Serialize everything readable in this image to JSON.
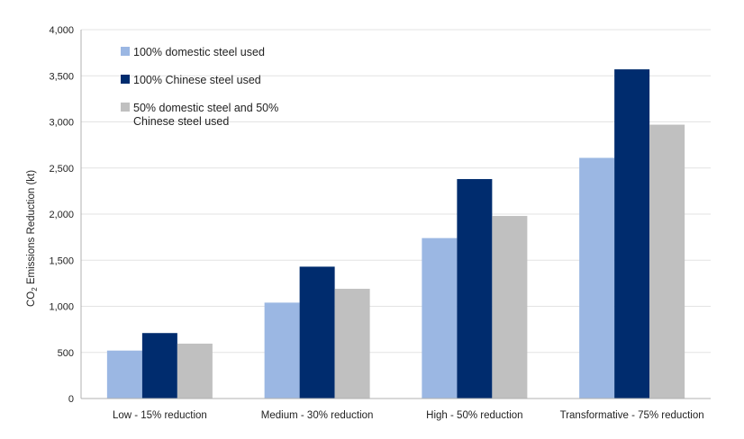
{
  "chart_data": {
    "type": "bar",
    "title": "",
    "xlabel": "",
    "ylabel": {
      "prefix": "CO",
      "subscript": "2",
      "suffix": " Emissions Reduction (kt)"
    },
    "categories": [
      "Low - 15% reduction",
      "Medium - 30% reduction",
      "High - 50% reduction",
      "Transformative - 75% reduction"
    ],
    "series": [
      {
        "name": "100% domestic steel used",
        "color": "#9bb7e3",
        "values": [
          520,
          1040,
          1740,
          2610
        ]
      },
      {
        "name": "100% Chinese steel used",
        "color": "#002c6e",
        "values": [
          710,
          1430,
          2380,
          3570
        ]
      },
      {
        "name": "50% domestic steel and 50% Chinese steel used",
        "name_lines": [
          "50% domestic steel and 50%",
          "Chinese steel used"
        ],
        "color": "#c0c0c0",
        "values": [
          595,
          1190,
          1980,
          2970
        ]
      }
    ],
    "ylim": [
      0,
      4000
    ],
    "yticks": [
      0,
      500,
      1000,
      1500,
      2000,
      2500,
      3000,
      3500,
      4000
    ],
    "ytick_labels": [
      "0",
      "500",
      "1,000",
      "1,500",
      "2,000",
      "2,500",
      "3,000",
      "3,500",
      "4,000"
    ],
    "grid": true,
    "legend_position": "top-left"
  }
}
